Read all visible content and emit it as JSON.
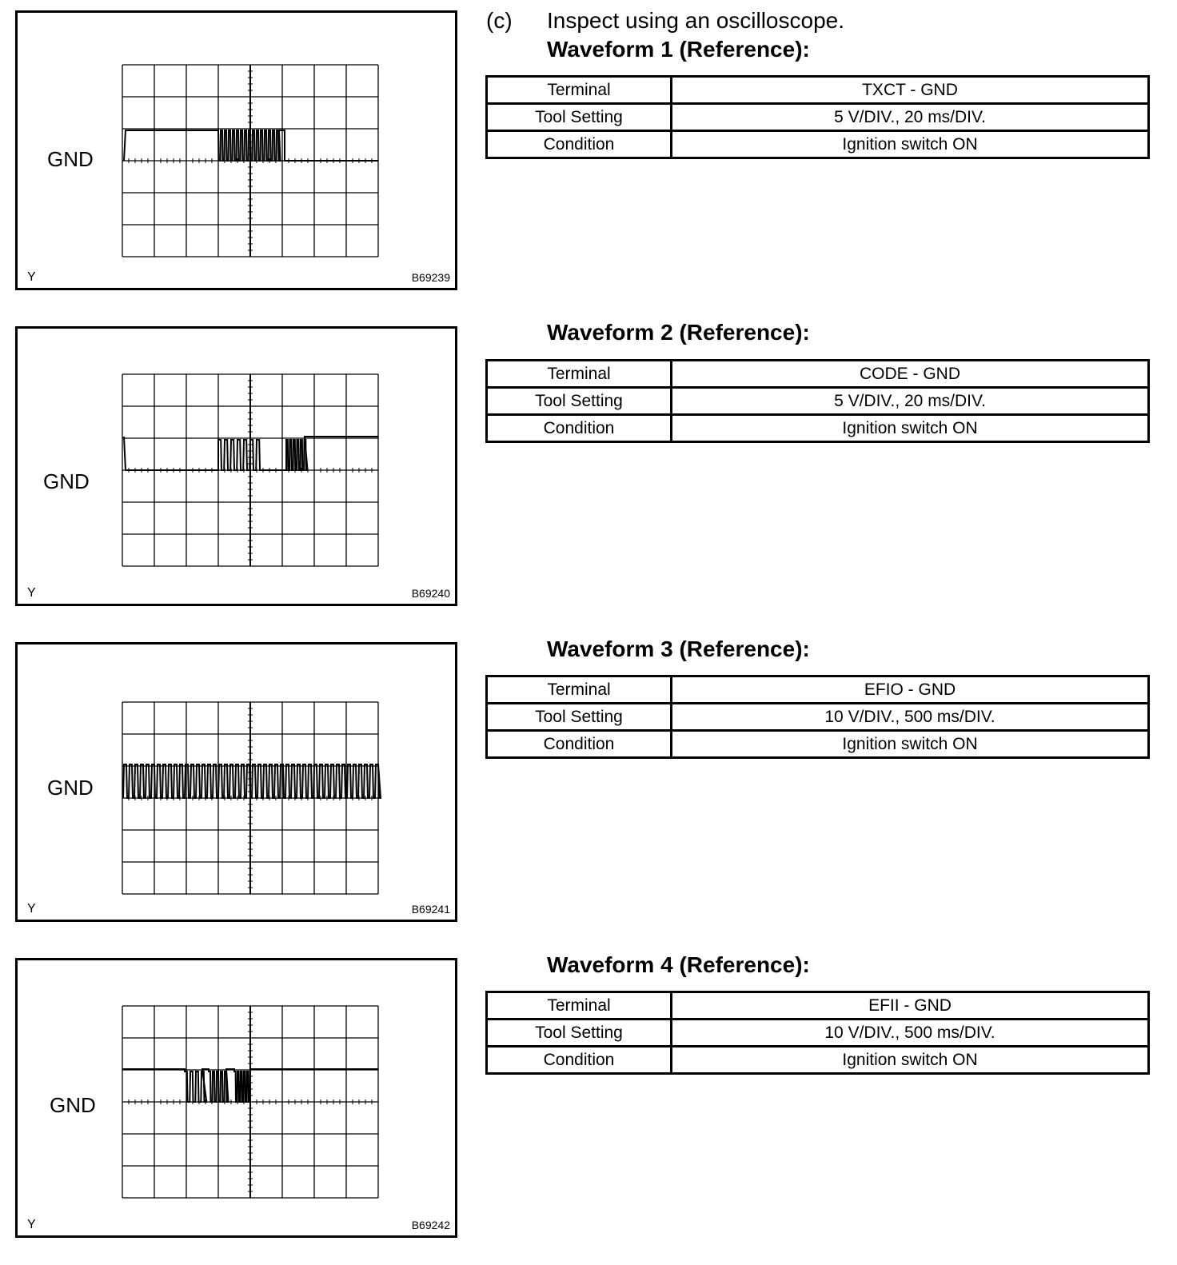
{
  "step_label": "(c)",
  "intro": "Inspect using an oscilloscope.",
  "waveforms": [
    {
      "title": "Waveform 1 (Reference):",
      "gnd_label": "GND",
      "y_label": "Y",
      "figure_code": "B69239",
      "rows": [
        {
          "key": "Terminal",
          "value": "TXCT - GND"
        },
        {
          "key": "Tool Setting",
          "value": "5 V/DIV., 20 ms/DIV."
        },
        {
          "key": "Condition",
          "value": "Ignition switch ON"
        }
      ]
    },
    {
      "title": "Waveform 2 (Reference):",
      "gnd_label": "GND",
      "y_label": "Y",
      "figure_code": "B69240",
      "rows": [
        {
          "key": "Terminal",
          "value": "CODE - GND"
        },
        {
          "key": "Tool Setting",
          "value": "5 V/DIV., 20 ms/DIV."
        },
        {
          "key": "Condition",
          "value": "Ignition switch ON"
        }
      ]
    },
    {
      "title": "Waveform 3 (Reference):",
      "gnd_label": "GND",
      "y_label": "Y",
      "figure_code": "B69241",
      "rows": [
        {
          "key": "Terminal",
          "value": "EFIO - GND"
        },
        {
          "key": "Tool Setting",
          "value": "10 V/DIV., 500 ms/DIV."
        },
        {
          "key": "Condition",
          "value": "Ignition switch ON"
        }
      ]
    },
    {
      "title": "Waveform 4 (Reference):",
      "gnd_label": "GND",
      "y_label": "Y",
      "figure_code": "B69242",
      "rows": [
        {
          "key": "Terminal",
          "value": "EFII - GND"
        },
        {
          "key": "Tool Setting",
          "value": "10 V/DIV., 500 ms/DIV."
        },
        {
          "key": "Condition",
          "value": "Ignition switch ON"
        }
      ]
    }
  ]
}
